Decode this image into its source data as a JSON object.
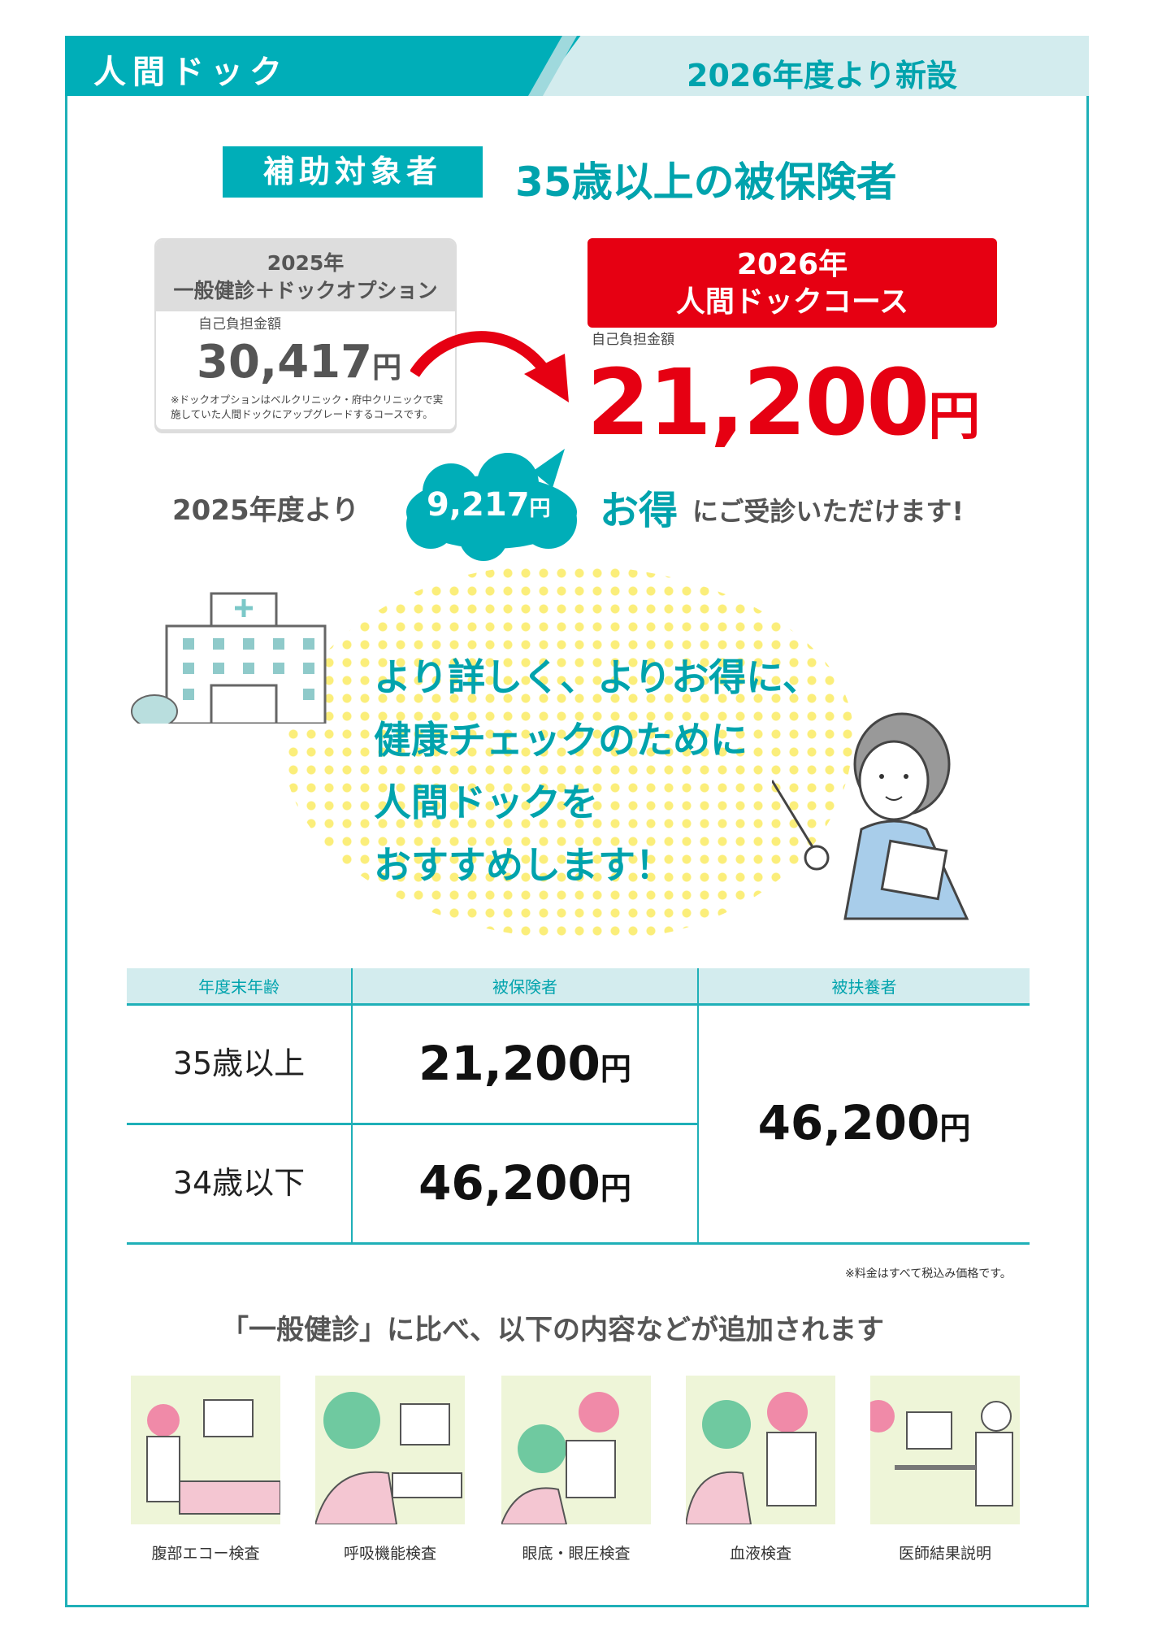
{
  "header": {
    "title": "人間ドック",
    "subtitle": "2026年度より新設"
  },
  "target": {
    "label": "補助対象者",
    "value": "35歳以上の被保険者"
  },
  "old_plan": {
    "year": "2025年",
    "name": "一般健診＋ドックオプション",
    "amount_label": "自己負担金額",
    "amount": "30,417",
    "unit": "円",
    "note": "※ドックオプションはベルクリニック・府中クリニックで実施していた人間ドックにアップグレードするコースです。"
  },
  "new_plan": {
    "year": "2026年",
    "name": "人間ドックコース",
    "amount_label": "自己負担金額",
    "amount": "21,200",
    "unit": "円"
  },
  "savings": {
    "prefix": "2025年度より",
    "amount": "9,217",
    "unit": "円",
    "highlight": "お得",
    "suffix": "にご受診いただけます!"
  },
  "message": [
    "より詳しく、よりお得に、",
    "健康チェックのために",
    "人間ドックを",
    "おすすめします！"
  ],
  "table": {
    "headers": [
      "年度末年齢",
      "被保険者",
      "被扶養者"
    ],
    "rows": [
      {
        "age": "35歳以上",
        "insured": "21,200"
      },
      {
        "age": "34歳以下",
        "insured": "46,200"
      }
    ],
    "dependent": "46,200",
    "unit": "円",
    "note": "※料金はすべて税込み価格です。"
  },
  "compare_heading": "「一般健診」に比べ、以下の内容などが追加されます",
  "exams": [
    "腹部エコー検査",
    "呼吸機能検査",
    "眼底・眼圧検査",
    "血液検査",
    "医師結果説明"
  ],
  "colors": {
    "teal": "#00aeb8",
    "red": "#e60012",
    "light_teal": "#d3ecee",
    "dots": "#fbee7a"
  }
}
